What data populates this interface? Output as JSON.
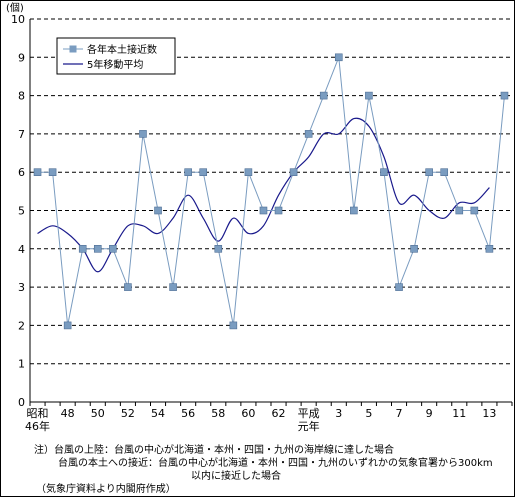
{
  "chart_data": {
    "type": "line",
    "y_unit": "(個)",
    "ylim": [
      0,
      10
    ],
    "y_ticks": [
      "0",
      "1",
      "2",
      "3",
      "4",
      "5",
      "6",
      "7",
      "8",
      "9",
      "10"
    ],
    "grid": "horizontal dashed",
    "legend_position": "top-left",
    "x_tick_labels": [
      {
        "index": 0,
        "lines": [
          "昭和",
          "46年"
        ]
      },
      {
        "index": 2,
        "lines": [
          "48"
        ]
      },
      {
        "index": 4,
        "lines": [
          "50"
        ]
      },
      {
        "index": 6,
        "lines": [
          "52"
        ]
      },
      {
        "index": 8,
        "lines": [
          "54"
        ]
      },
      {
        "index": 10,
        "lines": [
          "56"
        ]
      },
      {
        "index": 12,
        "lines": [
          "58"
        ]
      },
      {
        "index": 14,
        "lines": [
          "60"
        ]
      },
      {
        "index": 16,
        "lines": [
          "62"
        ]
      },
      {
        "index": 18,
        "lines": [
          "平成",
          "元年"
        ]
      },
      {
        "index": 20,
        "lines": [
          "3"
        ]
      },
      {
        "index": 22,
        "lines": [
          "5"
        ]
      },
      {
        "index": 24,
        "lines": [
          "7"
        ]
      },
      {
        "index": 26,
        "lines": [
          "9"
        ]
      },
      {
        "index": 28,
        "lines": [
          "11"
        ]
      },
      {
        "index": 30,
        "lines": [
          "13"
        ]
      }
    ],
    "series": [
      {
        "name": "各年本土接近数",
        "color": "#7a9cc0",
        "marker": "square",
        "values": [
          6,
          6,
          2,
          4,
          4,
          4,
          3,
          7,
          5,
          3,
          6,
          6,
          4,
          2,
          6,
          5,
          5,
          6,
          7,
          8,
          9,
          5,
          8,
          6,
          3,
          4,
          6,
          6,
          5,
          5,
          4,
          8
        ]
      },
      {
        "name": "5年移動平均",
        "color": "#1a1a8c",
        "smooth": true,
        "values": [
          4.4,
          4.6,
          4.4,
          4.0,
          3.4,
          4.0,
          4.6,
          4.6,
          4.4,
          4.8,
          5.4,
          4.8,
          4.2,
          4.8,
          4.4,
          4.6,
          5.4,
          6.0,
          6.4,
          7.0,
          7.0,
          7.4,
          7.2,
          6.4,
          5.2,
          5.4,
          5.0,
          4.8,
          5.2,
          5.2,
          5.6
        ]
      }
    ]
  },
  "notes": {
    "line1": "注）台風の上陸：台風の中心が北海道・本州・四国・九州の海岸線に達した場合",
    "line2": "台風の本土への接近：台風の中心が北海道・本州・四国・九州のいずれかの気象官署から300km",
    "line3": "以内に接近した場合",
    "source": "（気象庁資料より内閣府作成）"
  }
}
